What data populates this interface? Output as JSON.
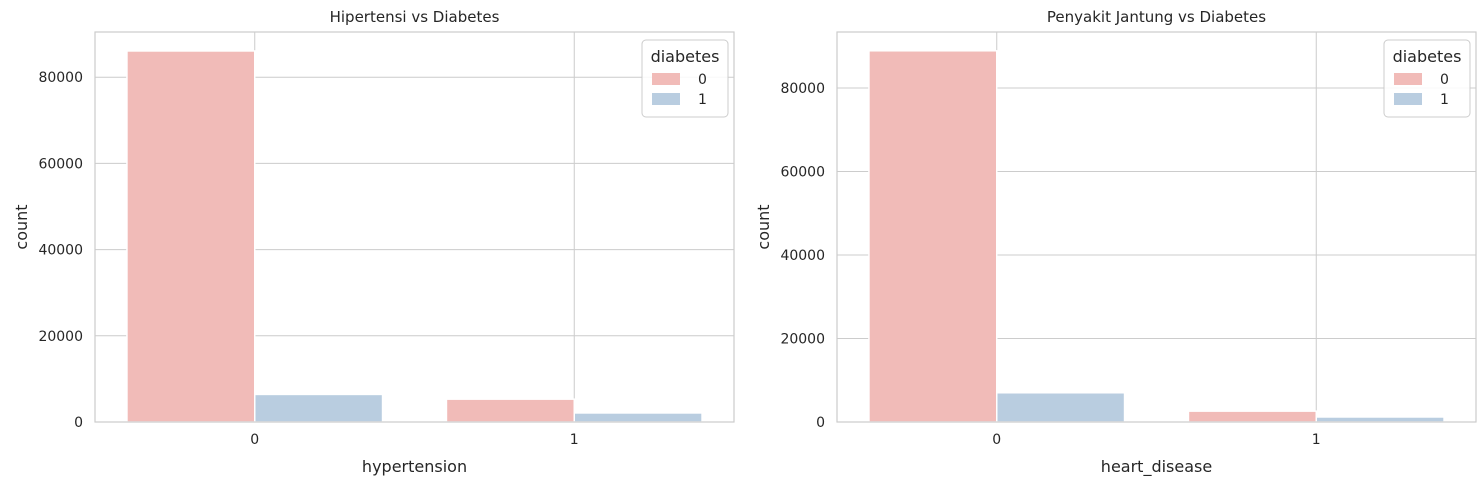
{
  "colors": {
    "diabetes_0": "#f1bbb8",
    "diabetes_1": "#b9cde0",
    "grid": "#cccccc",
    "frame": "#cccccc"
  },
  "chart_data": [
    {
      "type": "bar",
      "title": "Hipertensi vs Diabetes",
      "xlabel": "hypertension",
      "ylabel": "count",
      "categories": [
        "0",
        "1"
      ],
      "ylim": [
        0,
        90500
      ],
      "yticks": [
        0,
        20000,
        40000,
        60000,
        80000
      ],
      "ytick_labels": [
        "0",
        "20000",
        "40000",
        "60000",
        "80000"
      ],
      "grid": true,
      "legend": {
        "title": "diabetes",
        "placement": "top-right"
      },
      "series": [
        {
          "name": "0",
          "values": [
            86100,
            5300
          ]
        },
        {
          "name": "1",
          "values": [
            6400,
            2100
          ]
        }
      ]
    },
    {
      "type": "bar",
      "title": "Penyakit Jantung vs Diabetes",
      "xlabel": "heart_disease",
      "ylabel": "count",
      "categories": [
        "0",
        "1"
      ],
      "ylim": [
        0,
        93400
      ],
      "yticks": [
        0,
        20000,
        40000,
        60000,
        80000
      ],
      "ytick_labels": [
        "0",
        "20000",
        "40000",
        "60000",
        "80000"
      ],
      "grid": true,
      "legend": {
        "title": "diabetes",
        "placement": "top-right"
      },
      "series": [
        {
          "name": "0",
          "values": [
            88900,
            2600
          ]
        },
        {
          "name": "1",
          "values": [
            7000,
            1200
          ]
        }
      ]
    }
  ]
}
